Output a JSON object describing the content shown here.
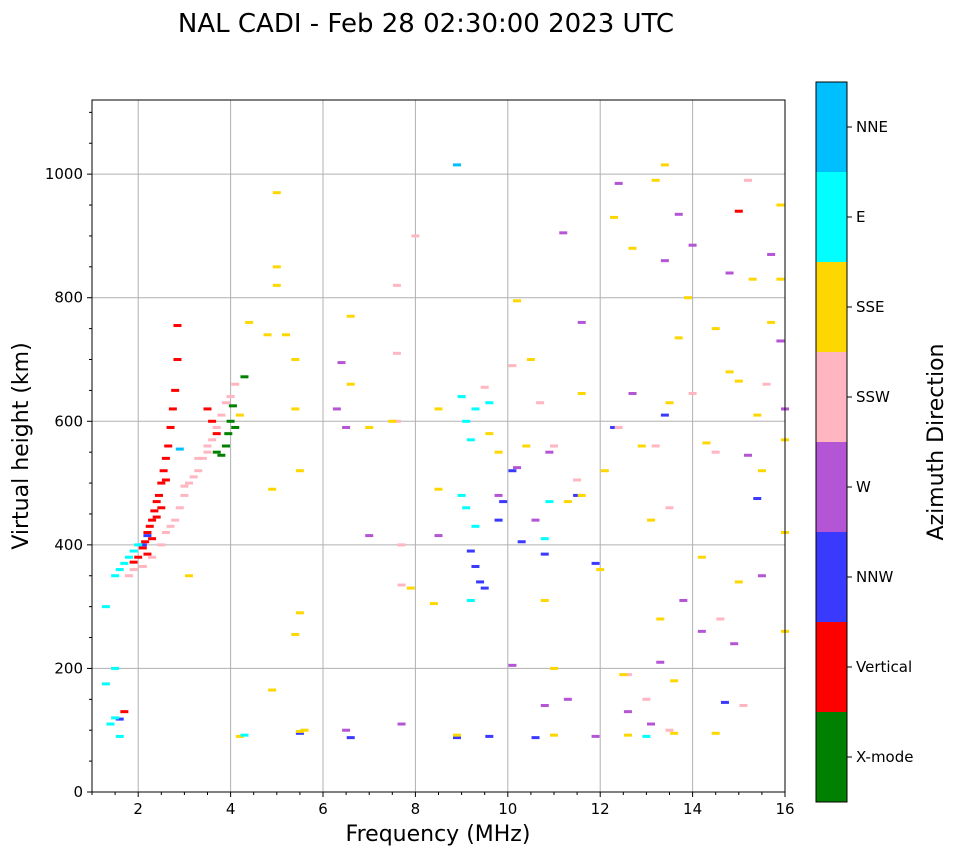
{
  "chart_data": {
    "type": "scatter",
    "title": "NAL CADI - Feb 28 02:30:00 2023 UTC",
    "xlabel": "Frequency (MHz)",
    "ylabel": "Virtual height (km)",
    "xlim": [
      1,
      16
    ],
    "ylim": [
      0,
      1120
    ],
    "xticks": [
      2,
      4,
      6,
      8,
      10,
      12,
      14,
      16
    ],
    "yticks": [
      0,
      200,
      400,
      600,
      800,
      1000
    ],
    "grid": true,
    "colorbar": {
      "label": "Azimuth Direction",
      "categories": [
        {
          "name": "X-mode",
          "color": "#008000"
        },
        {
          "name": "Vertical",
          "color": "#ff0000"
        },
        {
          "name": "NNW",
          "color": "#3a3aff"
        },
        {
          "name": "W",
          "color": "#b455d6"
        },
        {
          "name": "SSW",
          "color": "#ffb6c1"
        },
        {
          "name": "SSE",
          "color": "#ffd700"
        },
        {
          "name": "E",
          "color": "#00ffff"
        },
        {
          "name": "NNE",
          "color": "#00bfff"
        }
      ]
    },
    "series": [
      {
        "name": "Vertical",
        "points": [
          [
            1.7,
            130
          ],
          [
            1.9,
            372
          ],
          [
            2.0,
            380
          ],
          [
            2.1,
            395
          ],
          [
            2.15,
            405
          ],
          [
            2.2,
            420
          ],
          [
            2.25,
            430
          ],
          [
            2.3,
            440
          ],
          [
            2.35,
            455
          ],
          [
            2.4,
            470
          ],
          [
            2.45,
            480
          ],
          [
            2.5,
            500
          ],
          [
            2.55,
            520
          ],
          [
            2.6,
            540
          ],
          [
            2.65,
            560
          ],
          [
            2.7,
            590
          ],
          [
            2.75,
            620
          ],
          [
            2.8,
            650
          ],
          [
            2.85,
            700
          ],
          [
            2.85,
            755
          ],
          [
            3.5,
            620
          ],
          [
            3.6,
            600
          ],
          [
            3.7,
            580
          ],
          [
            2.3,
            410
          ],
          [
            2.4,
            445
          ],
          [
            2.2,
            385
          ],
          [
            2.5,
            460
          ],
          [
            2.6,
            505
          ],
          [
            15.0,
            940
          ]
        ]
      },
      {
        "name": "X-mode",
        "points": [
          [
            3.8,
            545
          ],
          [
            3.9,
            560
          ],
          [
            4.0,
            600
          ],
          [
            4.05,
            625
          ],
          [
            4.1,
            590
          ],
          [
            4.3,
            672
          ],
          [
            3.7,
            550
          ],
          [
            3.95,
            580
          ]
        ]
      },
      {
        "name": "NNW",
        "points": [
          [
            1.6,
            118
          ],
          [
            2.1,
            400
          ],
          [
            2.2,
            415
          ],
          [
            9.2,
            390
          ],
          [
            9.3,
            365
          ],
          [
            9.4,
            340
          ],
          [
            9.5,
            330
          ],
          [
            9.8,
            440
          ],
          [
            9.9,
            470
          ],
          [
            10.1,
            520
          ],
          [
            10.3,
            405
          ],
          [
            10.8,
            385
          ],
          [
            11.5,
            480
          ],
          [
            11.9,
            370
          ],
          [
            12.3,
            590
          ],
          [
            13.4,
            610
          ],
          [
            14.7,
            145
          ],
          [
            15.4,
            475
          ],
          [
            8.9,
            88
          ],
          [
            9.6,
            90
          ],
          [
            10.6,
            88
          ],
          [
            6.6,
            88
          ],
          [
            5.5,
            95
          ]
        ]
      },
      {
        "name": "W",
        "points": [
          [
            6.4,
            695
          ],
          [
            6.5,
            590
          ],
          [
            6.3,
            620
          ],
          [
            7.0,
            415
          ],
          [
            8.5,
            415
          ],
          [
            9.8,
            480
          ],
          [
            10.2,
            525
          ],
          [
            10.6,
            440
          ],
          [
            10.9,
            550
          ],
          [
            11.2,
            905
          ],
          [
            11.6,
            760
          ],
          [
            12.4,
            985
          ],
          [
            12.7,
            645
          ],
          [
            13.4,
            860
          ],
          [
            13.7,
            935
          ],
          [
            14.0,
            885
          ],
          [
            14.8,
            840
          ],
          [
            15.2,
            545
          ],
          [
            15.7,
            870
          ],
          [
            15.9,
            730
          ],
          [
            16.0,
            620
          ],
          [
            15.5,
            350
          ],
          [
            14.9,
            240
          ],
          [
            14.2,
            260
          ],
          [
            13.8,
            310
          ],
          [
            13.3,
            210
          ],
          [
            13.1,
            110
          ],
          [
            12.6,
            130
          ],
          [
            11.9,
            90
          ],
          [
            11.3,
            150
          ],
          [
            10.8,
            140
          ],
          [
            10.1,
            205
          ],
          [
            7.7,
            110
          ],
          [
            6.5,
            100
          ]
        ]
      },
      {
        "name": "SSW",
        "points": [
          [
            1.8,
            350
          ],
          [
            1.9,
            360
          ],
          [
            2.1,
            365
          ],
          [
            2.3,
            380
          ],
          [
            2.5,
            400
          ],
          [
            2.6,
            420
          ],
          [
            2.8,
            440
          ],
          [
            2.9,
            460
          ],
          [
            3.0,
            480
          ],
          [
            3.1,
            500
          ],
          [
            3.2,
            510
          ],
          [
            3.3,
            520
          ],
          [
            3.4,
            540
          ],
          [
            3.5,
            560
          ],
          [
            3.6,
            570
          ],
          [
            3.7,
            590
          ],
          [
            3.8,
            610
          ],
          [
            3.9,
            630
          ],
          [
            4.0,
            640
          ],
          [
            4.1,
            660
          ],
          [
            3.3,
            540
          ],
          [
            3.5,
            550
          ],
          [
            3.0,
            495
          ],
          [
            2.7,
            430
          ],
          [
            7.6,
            820
          ],
          [
            7.6,
            710
          ],
          [
            7.6,
            600
          ],
          [
            7.7,
            400
          ],
          [
            7.7,
            335
          ],
          [
            8.0,
            900
          ],
          [
            9.5,
            655
          ],
          [
            10.1,
            690
          ],
          [
            10.7,
            630
          ],
          [
            11.0,
            560
          ],
          [
            11.5,
            505
          ],
          [
            12.4,
            590
          ],
          [
            13.2,
            560
          ],
          [
            13.5,
            460
          ],
          [
            14.0,
            645
          ],
          [
            14.5,
            550
          ],
          [
            15.2,
            990
          ],
          [
            15.6,
            660
          ],
          [
            13.0,
            150
          ],
          [
            12.6,
            190
          ],
          [
            14.6,
            280
          ],
          [
            15.1,
            140
          ],
          [
            13.5,
            100
          ]
        ]
      },
      {
        "name": "SSE",
        "points": [
          [
            4.2,
            610
          ],
          [
            4.4,
            760
          ],
          [
            4.8,
            740
          ],
          [
            4.9,
            490
          ],
          [
            5.0,
            970
          ],
          [
            5.0,
            850
          ],
          [
            5.0,
            820
          ],
          [
            5.2,
            740
          ],
          [
            5.4,
            700
          ],
          [
            5.4,
            620
          ],
          [
            5.5,
            520
          ],
          [
            5.5,
            290
          ],
          [
            5.4,
            255
          ],
          [
            5.6,
            100
          ],
          [
            5.5,
            98
          ],
          [
            6.6,
            660
          ],
          [
            6.6,
            770
          ],
          [
            7.0,
            590
          ],
          [
            7.5,
            600
          ],
          [
            7.9,
            330
          ],
          [
            8.4,
            305
          ],
          [
            8.5,
            620
          ],
          [
            8.5,
            490
          ],
          [
            9.6,
            580
          ],
          [
            9.8,
            550
          ],
          [
            10.2,
            795
          ],
          [
            10.4,
            560
          ],
          [
            10.5,
            700
          ],
          [
            10.8,
            310
          ],
          [
            11.0,
            200
          ],
          [
            11.3,
            470
          ],
          [
            11.6,
            480
          ],
          [
            11.6,
            645
          ],
          [
            12.0,
            360
          ],
          [
            12.1,
            520
          ],
          [
            12.3,
            930
          ],
          [
            12.5,
            190
          ],
          [
            12.7,
            880
          ],
          [
            12.9,
            560
          ],
          [
            13.1,
            440
          ],
          [
            13.2,
            990
          ],
          [
            13.3,
            280
          ],
          [
            13.4,
            1015
          ],
          [
            13.5,
            630
          ],
          [
            13.6,
            180
          ],
          [
            13.7,
            735
          ],
          [
            13.9,
            800
          ],
          [
            14.2,
            380
          ],
          [
            14.3,
            565
          ],
          [
            14.5,
            750
          ],
          [
            14.8,
            680
          ],
          [
            15.0,
            665
          ],
          [
            15.0,
            340
          ],
          [
            15.3,
            830
          ],
          [
            15.4,
            610
          ],
          [
            15.5,
            520
          ],
          [
            15.7,
            760
          ],
          [
            15.9,
            950
          ],
          [
            15.9,
            830
          ],
          [
            16.0,
            570
          ],
          [
            16.0,
            420
          ],
          [
            16.0,
            260
          ],
          [
            14.5,
            95
          ],
          [
            12.6,
            92
          ],
          [
            11.0,
            92
          ],
          [
            8.9,
            92
          ],
          [
            13.6,
            95
          ],
          [
            4.9,
            165
          ],
          [
            4.2,
            90
          ],
          [
            3.1,
            350
          ]
        ]
      },
      {
        "name": "E",
        "points": [
          [
            1.3,
            175
          ],
          [
            1.4,
            110
          ],
          [
            1.5,
            120
          ],
          [
            1.6,
            90
          ],
          [
            1.5,
            350
          ],
          [
            1.6,
            360
          ],
          [
            1.7,
            370
          ],
          [
            1.8,
            380
          ],
          [
            1.9,
            390
          ],
          [
            2.0,
            400
          ],
          [
            1.3,
            300
          ],
          [
            1.5,
            200
          ],
          [
            9.0,
            640
          ],
          [
            9.1,
            600
          ],
          [
            9.2,
            570
          ],
          [
            9.0,
            480
          ],
          [
            9.1,
            460
          ],
          [
            9.3,
            430
          ],
          [
            9.2,
            310
          ],
          [
            9.3,
            620
          ],
          [
            9.6,
            630
          ],
          [
            10.8,
            410
          ],
          [
            10.9,
            470
          ],
          [
            13.0,
            90
          ],
          [
            4.3,
            92
          ]
        ]
      },
      {
        "name": "NNE",
        "points": [
          [
            8.9,
            1015
          ],
          [
            2.9,
            555
          ]
        ]
      }
    ]
  }
}
